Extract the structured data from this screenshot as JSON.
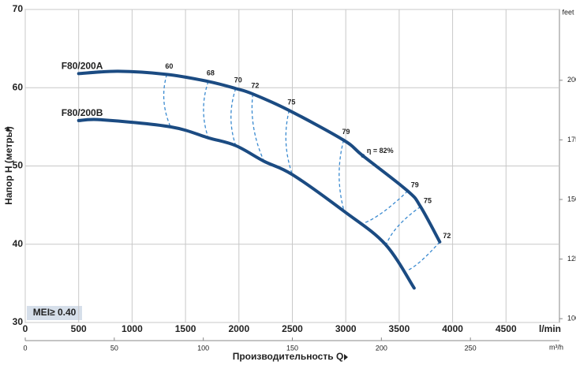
{
  "chart_data": {
    "type": "line",
    "y_label": "Напор H (метры)",
    "x_label": "Производительность Q",
    "x_unit": "l/min",
    "x2_unit": "m³/h",
    "y2_unit": "feet",
    "badge": "MEI≥ 0.40",
    "grid": true,
    "xlim": [
      0,
      5000
    ],
    "xticks": [
      0,
      500,
      1000,
      1500,
      2000,
      2500,
      3000,
      3500,
      4000,
      4500
    ],
    "x2lim": [
      0,
      300
    ],
    "x2ticks": [
      0,
      50,
      100,
      150,
      200,
      250
    ],
    "ylim": [
      30,
      70
    ],
    "yticks": [
      30,
      40,
      50,
      60,
      70
    ],
    "y2lim": [
      98.4,
      229.7
    ],
    "y2ticks": [
      100,
      125,
      150,
      175,
      200
    ],
    "series": [
      {
        "name": "F80/200A",
        "color": "#1b4b82",
        "x": [
          500,
          870,
          1325,
          1713,
          1970,
          2130,
          2470,
          2980,
          3160,
          3580,
          3700,
          3880
        ],
        "values": [
          61.8,
          62.1,
          61.7,
          60.8,
          59.9,
          59.2,
          57.1,
          53.3,
          51.3,
          46.8,
          44.8,
          40.3
        ]
      },
      {
        "name": "F80/200B",
        "color": "#1b4b82",
        "x": [
          500,
          720,
          1360,
          1713,
          1970,
          2235,
          2500,
          2985,
          3370,
          3640
        ],
        "values": [
          55.8,
          55.9,
          55.0,
          53.6,
          52.6,
          50.6,
          48.9,
          44.2,
          40.0,
          34.4
        ]
      }
    ],
    "efficiency_color": "#3a8ad0",
    "efficiency": [
      {
        "eta": 60,
        "q": 1325,
        "h": 61.7,
        "q_b": 1360,
        "h_b": 55.0
      },
      {
        "eta": 68,
        "q": 1713,
        "h": 60.8,
        "q_b": 1713,
        "h_b": 53.6
      },
      {
        "eta": 70,
        "q": 1970,
        "h": 59.9,
        "q_b": 1970,
        "h_b": 52.6
      },
      {
        "eta": 72,
        "q": 2130,
        "h": 59.2,
        "q_b": 2235,
        "h_b": 50.6
      },
      {
        "eta": 75,
        "q": 2470,
        "h": 57.1,
        "q_b": 2500,
        "h_b": 48.9
      },
      {
        "eta": 79,
        "q": 2980,
        "h": 53.3,
        "q_b": 2985,
        "h_b": 44.2
      },
      {
        "eta": {
          "value": 82,
          "label": "η = 82%"
        },
        "q": 3160,
        "h": 51.3
      },
      {
        "eta": 79,
        "q": 3580,
        "h": 46.8,
        "q_b": 3170,
        "h_b": 42.7
      },
      {
        "eta": 75,
        "q": 3700,
        "h": 44.8,
        "q_b": 3380,
        "h_b": 40.0
      },
      {
        "eta": 72,
        "q": 3880,
        "h": 40.3,
        "q_b": 3570,
        "h_b": 36.6
      }
    ]
  }
}
